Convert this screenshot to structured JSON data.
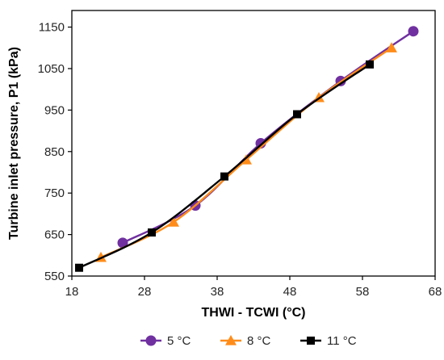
{
  "chart_data": {
    "type": "line",
    "title": "",
    "xlabel": "THWI - TCWI (°C)",
    "ylabel": "Turbine inlet pressure, P1 (kPa)",
    "xlim": [
      18,
      68
    ],
    "ylim": [
      550,
      1190
    ],
    "x_ticks": [
      "18",
      "28",
      "38",
      "48",
      "58",
      "68"
    ],
    "y_ticks": [
      "550",
      "650",
      "750",
      "850",
      "950",
      "1050",
      "1150"
    ],
    "x_tick_values": [
      18,
      28,
      38,
      48,
      58,
      68
    ],
    "y_tick_values": [
      550,
      650,
      750,
      850,
      950,
      1050,
      1150
    ],
    "grid": false,
    "legend_position": "bottom",
    "series": [
      {
        "name": "5 °C",
        "color": "#7030A0",
        "marker": "circle",
        "x": [
          25,
          35,
          44,
          55,
          65
        ],
        "y": [
          630,
          720,
          870,
          1020,
          1140
        ]
      },
      {
        "name": "8 °C",
        "color": "#FF8C1A",
        "marker": "triangle",
        "x": [
          22,
          32,
          42,
          52,
          62
        ],
        "y": [
          595,
          680,
          830,
          980,
          1100
        ]
      },
      {
        "name": "11 °C",
        "color": "#000000",
        "marker": "square",
        "x": [
          19,
          29,
          39,
          49,
          59
        ],
        "y": [
          570,
          655,
          790,
          940,
          1060
        ]
      }
    ]
  }
}
